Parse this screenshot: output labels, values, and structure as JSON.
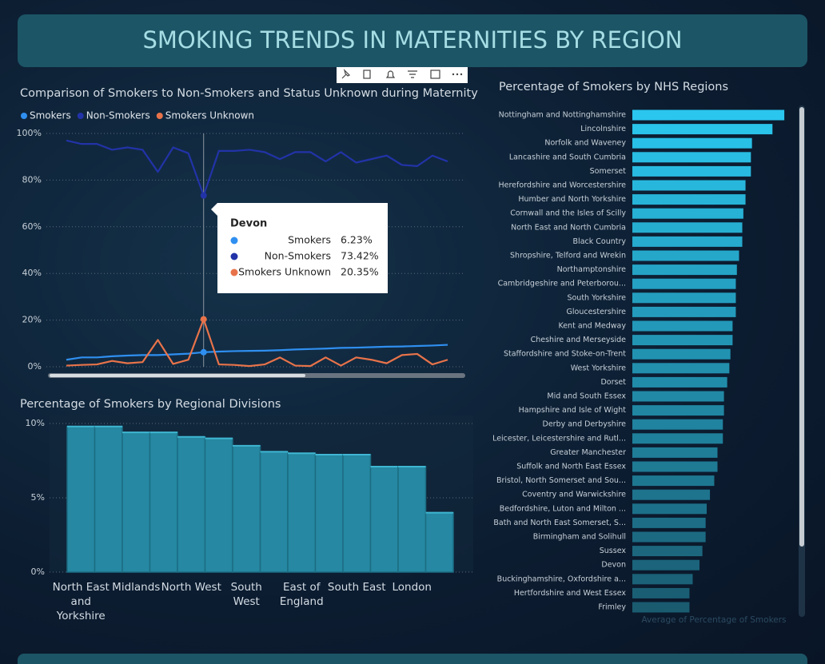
{
  "title": "SMOKING TRENDS IN MATERNITIES BY REGION",
  "chart_data": [
    {
      "type": "line",
      "title": "Comparison of Smokers to Non-Smokers and Status Unknown during Maternity",
      "categories": [
        null,
        null,
        null,
        null,
        null,
        null,
        null,
        null,
        null,
        "Devon",
        null,
        null,
        null,
        null,
        null,
        null,
        null,
        null,
        null,
        null,
        null,
        null,
        null,
        null,
        null,
        null
      ],
      "series": [
        {
          "name": "Smokers",
          "color": "#2f8ff0",
          "values": [
            3,
            4,
            4,
            4.5,
            4.8,
            5,
            5,
            5.3,
            5.6,
            6.23,
            6.5,
            6.7,
            6.8,
            6.9,
            7.1,
            7.4,
            7.6,
            7.8,
            8.1,
            8.2,
            8.4,
            8.6,
            8.7,
            8.9,
            9.1,
            9.4
          ],
          "value_labels": [
            null,
            null,
            null,
            null,
            null,
            null,
            null,
            null,
            null,
            "6.23%",
            null,
            null,
            null,
            null,
            null,
            null,
            null,
            null,
            null,
            null,
            null,
            null,
            null,
            null,
            null,
            null
          ]
        },
        {
          "name": "Non-Smokers",
          "color": "#2233a8",
          "values": [
            97,
            95.5,
            95.5,
            93,
            94,
            93,
            83.5,
            94,
            91.5,
            73.42,
            92.5,
            92.5,
            93,
            92,
            89,
            92,
            92,
            88,
            92,
            87.5,
            89,
            90.5,
            86.5,
            86,
            90.5,
            88
          ],
          "value_labels": [
            null,
            null,
            null,
            null,
            null,
            null,
            null,
            null,
            null,
            "73.42%",
            null,
            null,
            null,
            null,
            null,
            null,
            null,
            null,
            null,
            null,
            null,
            null,
            null,
            null,
            null,
            null
          ]
        },
        {
          "name": "Smokers Unknown",
          "color": "#e8734a",
          "values": [
            0.5,
            0.8,
            1,
            2.5,
            1.5,
            2,
            11.5,
            1.2,
            3,
            20.35,
            1,
            0.8,
            0.3,
            1,
            4,
            0.5,
            0.3,
            4,
            0.5,
            4,
            3,
            1.5,
            5,
            5.5,
            1,
            3
          ],
          "value_labels": [
            null,
            null,
            null,
            null,
            null,
            null,
            null,
            null,
            null,
            "20.35%",
            null,
            null,
            null,
            null,
            null,
            null,
            null,
            null,
            null,
            null,
            null,
            null,
            null,
            null,
            null,
            null
          ]
        }
      ],
      "ylim": [
        0,
        100
      ],
      "yticks": [
        {
          "value": 0,
          "label": "0%"
        },
        {
          "value": 20,
          "label": "20%"
        },
        {
          "value": 40,
          "label": "40%"
        },
        {
          "value": 60,
          "label": "60%"
        },
        {
          "value": 80,
          "label": "80%"
        },
        {
          "value": 100,
          "label": "100%"
        }
      ],
      "grid": true,
      "legend": "top-left"
    },
    {
      "type": "bar",
      "title": "Percentage of Smokers by Regional Divisions",
      "categories": [
        "North East and Yorkshire",
        null,
        "Midlands",
        null,
        "North West",
        null,
        "South West",
        null,
        "East of England",
        null,
        "South East",
        null,
        "London",
        null
      ],
      "values": [
        9.8,
        9.8,
        9.4,
        9.4,
        9.1,
        9.0,
        8.5,
        8.1,
        8.0,
        7.9,
        7.9,
        7.1,
        7.1,
        4.0
      ],
      "color": "#2688a2",
      "ylim": [
        0,
        10
      ],
      "yticks": [
        {
          "value": 0,
          "label": "0%"
        },
        {
          "value": 5,
          "label": "5%"
        },
        {
          "value": 10,
          "label": "10%"
        }
      ],
      "grid": true
    },
    {
      "type": "barh",
      "title": "Percentage of Smokers by NHS Regions",
      "x_label": "Average of Percentage of Smokers",
      "categories": [
        "Nottingham and Nottinghamshire",
        "Lincolnshire",
        "Norfolk and Waveney",
        "Lancashire and South Cumbria",
        "Somerset",
        "Herefordshire and Worcestershire",
        "Humber and North Yorkshire",
        "Cornwall and the Isles of Scilly",
        "North East and North Cumbria",
        "Black Country",
        "Shropshire, Telford and Wrekin",
        "Northamptonshire",
        "Cambridgeshire and Peterborou...",
        "South Yorkshire",
        "Gloucestershire",
        "Kent and Medway",
        "Cheshire and Merseyside",
        "Staffordshire and Stoke-on-Trent",
        "West Yorkshire",
        "Dorset",
        "Mid and South Essex",
        "Hampshire and Isle of Wight",
        "Derby and Derbyshire",
        "Leicester, Leicestershire and Rutl...",
        "Greater Manchester",
        "Suffolk and North East Essex",
        "Bristol, North Somerset and Sou...",
        "Coventry and Warwickshire",
        "Bedfordshire, Luton and Milton ...",
        "Bath and North East Somerset, S...",
        "Birmingham and Solihull",
        "Sussex",
        "Devon",
        "Buckinghamshire, Oxfordshire a...",
        "Hertfordshire and West Essex",
        "Frimley"
      ],
      "values": [
        14.1,
        13.0,
        11.1,
        11.0,
        11.0,
        10.5,
        10.5,
        10.3,
        10.2,
        10.2,
        9.9,
        9.7,
        9.6,
        9.6,
        9.6,
        9.3,
        9.3,
        9.1,
        9.0,
        8.8,
        8.5,
        8.5,
        8.4,
        8.4,
        7.9,
        7.9,
        7.6,
        7.2,
        6.9,
        6.8,
        6.8,
        6.5,
        6.23,
        5.6,
        5.3,
        5.3
      ],
      "color_range": [
        "#2ac6ee",
        "#1a5b70"
      ],
      "xlim": [
        0,
        14.5
      ]
    }
  ]
}
